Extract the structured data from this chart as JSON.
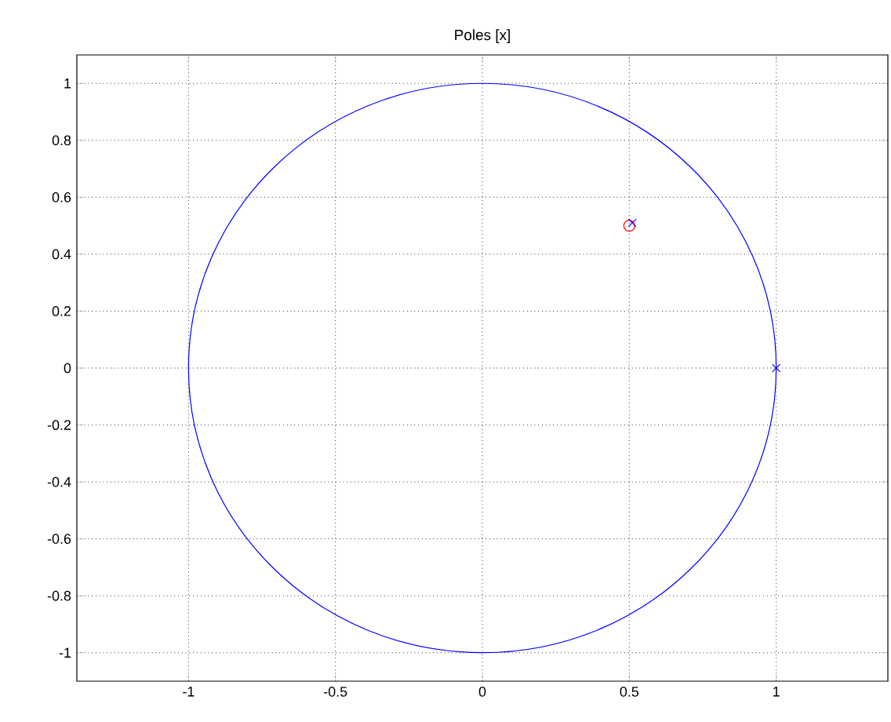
{
  "chart_data": {
    "type": "scatter",
    "title": "Poles [x]",
    "series": [
      {
        "color": "#ff0000",
        "marker": "circle",
        "x": [
          0.5
        ],
        "values": [
          0.5
        ]
      },
      {
        "color": "#0000ff",
        "marker": "cross",
        "x": [
          0.51,
          1
        ],
        "values": [
          0.51,
          0
        ]
      }
    ],
    "xlim": [
      -1.38,
      1.38
    ],
    "ylim": [
      -1.1,
      1.1
    ],
    "xticks": [
      -1,
      -0.5,
      0,
      0.5,
      1
    ],
    "yticks": [
      -1,
      -0.8,
      -0.6,
      -0.4,
      -0.2,
      0,
      0.2,
      0.4,
      0.6,
      0.8,
      1
    ],
    "grid": true
  }
}
